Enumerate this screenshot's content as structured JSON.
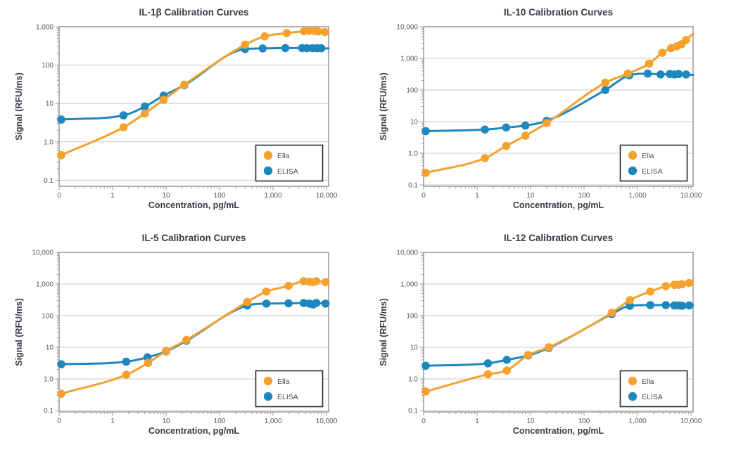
{
  "page": {
    "background": "#FFFFFF",
    "description": "Four-panel figure of cytokine calibration curves comparing Ella vs ELISA"
  },
  "colors": {
    "ella": "#F4A12E",
    "elisa": "#1E87BE",
    "grid": "#C9C9C9",
    "axis": "#999999",
    "tick_text": "#55555C",
    "title_text": "#3A3A44",
    "axis_label_text": "#3A3A44",
    "legend_border": "#2A2A2E",
    "legend_bg": "#FFFFFF",
    "legend_text": "#4A4A52"
  },
  "legend": {
    "entries": [
      {
        "label": "Ella",
        "color_key": "ella"
      },
      {
        "label": "ELISA",
        "color_key": "elisa"
      }
    ],
    "position": "lower-right"
  },
  "chart_data": [
    {
      "id": "il-1b",
      "type": "line",
      "title": "IL-1β Calibration Curves",
      "xlabel": "Concentration, pg/mL",
      "ylabel": "Signal (RFU/ms)",
      "x_scale": "log with 0 at origin",
      "y_scale": "log",
      "grid": "horizontal decade gridlines",
      "xlim": [
        0,
        10000
      ],
      "ylim": [
        0.1,
        1000
      ],
      "x_ticks": [
        "0",
        "1",
        "10",
        "100",
        "1,000",
        "10,000"
      ],
      "x_tick_values": [
        0,
        1,
        10,
        100,
        1000,
        10000
      ],
      "y_ticks": [
        "0.1",
        "1.0",
        "10",
        "100",
        "1,000"
      ],
      "y_tick_values": [
        0.1,
        1,
        10,
        100,
        1000
      ],
      "legend_position": "lower-right",
      "series": [
        {
          "name": "Ella",
          "color_key": "ella",
          "x": [
            0,
            1.6,
            4,
            9,
            22,
            300,
            700,
            1800,
            3800,
            4700,
            6000,
            7000,
            9300
          ],
          "y": [
            0.45,
            2.4,
            5.5,
            12.5,
            31,
            340,
            560,
            680,
            760,
            780,
            770,
            750,
            730
          ]
        },
        {
          "name": "ELISA",
          "color_key": "elisa",
          "x": [
            0,
            1.6,
            4,
            9,
            22,
            300,
            640,
            1700,
            3500,
            4300,
            5500,
            6700,
            8000
          ],
          "y": [
            3.8,
            4.9,
            8.3,
            16,
            30,
            262,
            272,
            277,
            277,
            276,
            276,
            275,
            274
          ]
        }
      ]
    },
    {
      "id": "il-10",
      "type": "line",
      "title": "IL-10 Calibration Curves",
      "xlabel": "Concentration, pg/mL",
      "ylabel": "Signal (RFU/ms)",
      "x_scale": "log with 0 at origin",
      "y_scale": "log",
      "grid": "horizontal decade gridlines",
      "xlim": [
        0,
        10000
      ],
      "ylim": [
        0.1,
        10000
      ],
      "x_ticks": [
        "0",
        "1",
        "10",
        "100",
        "1,000",
        "10,000"
      ],
      "x_tick_values": [
        0,
        1,
        10,
        100,
        1000,
        10000
      ],
      "y_ticks": [
        "0.1",
        "1.0",
        "10",
        "100",
        "1,000",
        "10,000"
      ],
      "y_tick_values": [
        0.1,
        1,
        10,
        100,
        1000,
        10000
      ],
      "legend_position": "lower-right",
      "series": [
        {
          "name": "Ella",
          "color_key": "ella",
          "x": [
            0,
            1.4,
            3.5,
            8,
            20,
            250,
            660,
            1650,
            2900,
            4250,
            5400,
            6600,
            8100
          ],
          "y": [
            0.24,
            0.7,
            1.7,
            3.6,
            9,
            170,
            330,
            680,
            1500,
            2100,
            2400,
            2800,
            3800
          ]
        },
        {
          "name": "ELISA",
          "color_key": "elisa",
          "x": [
            0,
            1.4,
            3.5,
            8,
            20,
            250,
            700,
            1550,
            2700,
            4000,
            4900,
            5900,
            8100
          ],
          "y": [
            5,
            5.6,
            6.5,
            7.5,
            10.5,
            100,
            290,
            330,
            310,
            320,
            310,
            320,
            310
          ]
        }
      ]
    },
    {
      "id": "il-5",
      "type": "line",
      "title": "IL-5 Calibration Curves",
      "xlabel": "Concentration, pg/mL",
      "ylabel": "Signal (RFU/ms)",
      "x_scale": "log with 0 at origin",
      "y_scale": "log",
      "grid": "horizontal decade gridlines",
      "xlim": [
        0,
        10000
      ],
      "ylim": [
        0.1,
        10000
      ],
      "x_ticks": [
        "0",
        "1",
        "10",
        "100",
        "1,000",
        "10,000"
      ],
      "x_tick_values": [
        0,
        1,
        10,
        100,
        1000,
        10000
      ],
      "y_ticks": [
        "0.1",
        "1.0",
        "10",
        "100",
        "1,000",
        "10,000"
      ],
      "y_tick_values": [
        0.1,
        1,
        10,
        100,
        1000,
        10000
      ],
      "legend_position": "lower-right",
      "series": [
        {
          "name": "Ella",
          "color_key": "ella",
          "x": [
            0,
            1.8,
            4.6,
            10,
            24,
            330,
            750,
            1950,
            3750,
            4800,
            5600,
            6450,
            9550
          ],
          "y": [
            0.34,
            1.35,
            3.2,
            7.6,
            17,
            270,
            575,
            870,
            1230,
            1180,
            1150,
            1230,
            1150
          ]
        },
        {
          "name": "ELISA",
          "color_key": "elisa",
          "x": [
            0,
            1.8,
            4.5,
            10,
            24,
            330,
            750,
            1950,
            3750,
            4800,
            5600,
            6450,
            9550
          ],
          "y": [
            2.9,
            3.5,
            4.8,
            7.4,
            16,
            210,
            240,
            245,
            250,
            240,
            225,
            250,
            240
          ]
        }
      ]
    },
    {
      "id": "il-12",
      "type": "line",
      "title": "IL-12 Calibration Curves",
      "xlabel": "Concentration, pg/mL",
      "ylabel": "Signal (RFU/ms)",
      "x_scale": "log with 0 at origin",
      "y_scale": "log",
      "grid": "horizontal decade gridlines",
      "xlim": [
        0,
        10000
      ],
      "ylim": [
        0.1,
        10000
      ],
      "x_ticks": [
        "0",
        "1",
        "10",
        "100",
        "1,000",
        "10,000"
      ],
      "x_tick_values": [
        0,
        1,
        10,
        100,
        1000,
        10000
      ],
      "y_ticks": [
        "0.1",
        "1.0",
        "10",
        "100",
        "1,000",
        "10,000"
      ],
      "y_tick_values": [
        0.1,
        1,
        10,
        100,
        1000,
        10000
      ],
      "legend_position": "lower-right",
      "series": [
        {
          "name": "Ella",
          "color_key": "ella",
          "x": [
            0,
            1.6,
            3.6,
            9,
            22,
            330,
            720,
            1730,
            3380,
            4870,
            5860,
            6800,
            9250
          ],
          "y": [
            0.4,
            1.4,
            1.85,
            5.7,
            10,
            123,
            310,
            575,
            855,
            940,
            940,
            985,
            1080
          ]
        },
        {
          "name": "ELISA",
          "color_key": "elisa",
          "x": [
            0,
            1.6,
            3.6,
            9,
            22,
            330,
            720,
            1730,
            3380,
            4870,
            5860,
            6800,
            9250
          ],
          "y": [
            2.6,
            3.1,
            4.0,
            5.5,
            9.5,
            112,
            205,
            215,
            215,
            210,
            210,
            205,
            210
          ]
        }
      ]
    }
  ]
}
